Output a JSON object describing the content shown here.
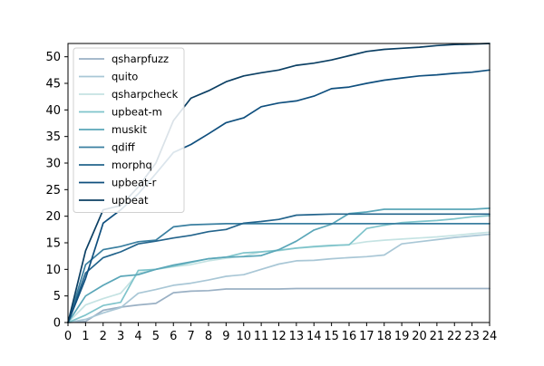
{
  "chart_data": {
    "type": "line",
    "title": "",
    "xlabel": "",
    "ylabel": "",
    "xlim": [
      0,
      24
    ],
    "ylim": [
      0,
      52.5
    ],
    "xticks": [
      0,
      1,
      2,
      3,
      4,
      5,
      6,
      7,
      8,
      9,
      10,
      11,
      12,
      13,
      14,
      15,
      16,
      17,
      18,
      19,
      20,
      21,
      22,
      23,
      24
    ],
    "yticks": [
      0,
      5,
      10,
      15,
      20,
      25,
      30,
      35,
      40,
      45,
      50
    ],
    "legend_position": "top-left",
    "grid": false,
    "x": [
      0,
      1,
      2,
      3,
      4,
      5,
      6,
      7,
      8,
      9,
      10,
      11,
      12,
      13,
      14,
      15,
      16,
      17,
      18,
      19,
      20,
      21,
      22,
      23,
      24
    ],
    "series": [
      {
        "name": "qsharpfuzz",
        "color": "#9ab0c4",
        "values": [
          0,
          0.2,
          2.3,
          2.9,
          3.3,
          3.6,
          5.6,
          5.9,
          6.0,
          6.3,
          6.3,
          6.3,
          6.3,
          6.4,
          6.4,
          6.4,
          6.4,
          6.4,
          6.4,
          6.4,
          6.4,
          6.4,
          6.4,
          6.4,
          6.4
        ]
      },
      {
        "name": "quito",
        "color": "#a9c7d6",
        "values": [
          0,
          0.6,
          1.8,
          2.8,
          5.5,
          6.2,
          7.0,
          7.4,
          8.0,
          8.7,
          9.0,
          10.0,
          11.0,
          11.6,
          11.7,
          12.0,
          12.2,
          12.4,
          12.7,
          14.8,
          15.2,
          15.6,
          16.0,
          16.3,
          16.6
        ]
      },
      {
        "name": "qsharpcheck",
        "color": "#c5e3e3",
        "values": [
          0,
          3.3,
          4.5,
          5.5,
          9.3,
          10.0,
          10.5,
          10.9,
          11.6,
          12.1,
          12.5,
          13.3,
          13.5,
          14.0,
          14.2,
          14.4,
          14.7,
          15.2,
          15.5,
          15.7,
          15.9,
          16.1,
          16.4,
          16.7,
          17.0
        ]
      },
      {
        "name": "upbeat-m",
        "color": "#7fc4cb",
        "values": [
          0,
          1.4,
          3.2,
          3.8,
          9.8,
          10.0,
          10.6,
          11.3,
          12.0,
          12.3,
          13.1,
          13.3,
          13.6,
          14.0,
          14.3,
          14.5,
          14.6,
          17.7,
          18.3,
          18.8,
          19.0,
          19.2,
          19.5,
          19.9,
          20.1
        ]
      },
      {
        "name": "muskit",
        "color": "#5aa6b8",
        "values": [
          0,
          5.0,
          7.0,
          8.7,
          9.0,
          10.0,
          10.8,
          11.4,
          12.0,
          12.3,
          12.4,
          12.6,
          13.7,
          15.3,
          17.4,
          18.5,
          20.5,
          20.8,
          21.3,
          21.3,
          21.3,
          21.3,
          21.3,
          21.3,
          21.5
        ]
      },
      {
        "name": "qdiff",
        "color": "#3a7fa0",
        "values": [
          0,
          10.9,
          13.7,
          14.3,
          15.2,
          15.5,
          18.0,
          18.4,
          18.5,
          18.6,
          18.6,
          18.6,
          18.6,
          18.6,
          18.6,
          18.6,
          18.6,
          18.6,
          18.6,
          18.6,
          18.6,
          18.6,
          18.6,
          18.6,
          18.6
        ]
      },
      {
        "name": "morphq",
        "color": "#23648c",
        "values": [
          0,
          9.3,
          12.2,
          13.3,
          14.8,
          15.3,
          15.9,
          16.4,
          17.1,
          17.5,
          18.7,
          19.0,
          19.4,
          20.2,
          20.3,
          20.4,
          20.4,
          20.4,
          20.4,
          20.4,
          20.4,
          20.4,
          20.4,
          20.4,
          20.4
        ]
      },
      {
        "name": "upbeat-r",
        "color": "#0f4f7e",
        "values": [
          0,
          8.3,
          18.7,
          21.2,
          24.2,
          28.0,
          32.0,
          33.5,
          35.5,
          37.6,
          38.5,
          40.6,
          41.3,
          41.7,
          42.6,
          44.0,
          44.3,
          45.0,
          45.6,
          46.0,
          46.4,
          46.6,
          46.9,
          47.1,
          47.5
        ]
      },
      {
        "name": "upbeat",
        "color": "#0b3f63",
        "values": [
          0,
          13.5,
          21.2,
          22.0,
          25.5,
          30.0,
          38.0,
          42.2,
          43.6,
          45.3,
          46.4,
          47.0,
          47.5,
          48.4,
          48.8,
          49.4,
          50.2,
          51.0,
          51.4,
          51.6,
          51.8,
          52.1,
          52.3,
          52.4,
          52.5
        ]
      }
    ]
  }
}
